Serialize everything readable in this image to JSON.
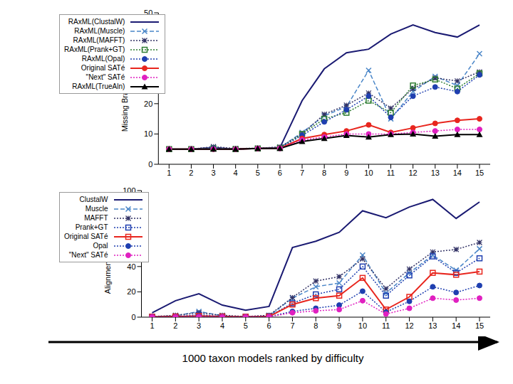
{
  "chart_data": [
    {
      "type": "line",
      "ylabel": "Missing Branch Rate (%)",
      "categories": [
        "1",
        "2",
        "3",
        "4",
        "5",
        "6",
        "7",
        "8",
        "9",
        "10",
        "11",
        "12",
        "13",
        "14",
        "15"
      ],
      "ylim": [
        0,
        50
      ],
      "yticks": [
        0,
        10,
        20,
        30,
        40,
        50
      ],
      "grid": false,
      "legend": "upper left",
      "series": [
        {
          "name": "RAxML(ClustalW)",
          "color": "#1a1a72",
          "line_style": "solid",
          "marker": "none",
          "values": [
            5,
            5,
            5.5,
            5,
            5.2,
            5.5,
            21,
            31.5,
            36.8,
            38,
            43,
            46,
            43.5,
            42,
            46
          ]
        },
        {
          "name": "RAxML(Muscle)",
          "color": "#4a86c8",
          "line_style": "dashed",
          "marker": "x",
          "values": [
            5,
            5,
            5.5,
            5,
            5.2,
            5.5,
            10.5,
            16,
            19,
            31,
            15,
            24,
            29,
            26,
            36.5
          ]
        },
        {
          "name": "RAxML(MAFFT)",
          "color": "#333366",
          "line_style": "dotted",
          "marker": "star",
          "values": [
            5,
            5,
            5.8,
            5.2,
            5.3,
            5.7,
            10,
            16.5,
            19.5,
            23.5,
            18.5,
            25,
            28.5,
            27.5,
            30.5
          ]
        },
        {
          "name": "RAxML(Prank+GT)",
          "color": "#2e7d32",
          "line_style": "dotted",
          "marker": "square",
          "values": [
            5,
            5,
            5.2,
            5,
            5.2,
            5.4,
            10,
            15,
            17,
            21,
            17,
            26,
            28,
            25,
            30
          ]
        },
        {
          "name": "RAxML(Opal)",
          "color": "#1f3fb0",
          "line_style": "dotted",
          "marker": "circle",
          "values": [
            5,
            5,
            5.2,
            5,
            5.2,
            5.4,
            9.5,
            14,
            18,
            22.5,
            15.5,
            22.5,
            25.5,
            24,
            29.5
          ]
        },
        {
          "name": "Original SATé",
          "color": "#e8261e",
          "line_style": "solid",
          "marker": "circle",
          "values": [
            5,
            5,
            5,
            5,
            5.2,
            5.3,
            8.5,
            9.8,
            11,
            13,
            10.5,
            12,
            13.5,
            14.5,
            15
          ]
        },
        {
          "name": "\"Next\" SATé",
          "color": "#e020c0",
          "line_style": "dotted",
          "marker": "circle",
          "values": [
            5,
            5,
            5,
            5,
            5.2,
            5.2,
            8,
            9,
            10,
            10,
            10,
            10.5,
            11,
            11.5,
            11.5
          ]
        },
        {
          "name": "RAxML(TrueAln)",
          "color": "#000000",
          "line_style": "solid",
          "marker": "triangle",
          "values": [
            5,
            5,
            5,
            5,
            5.2,
            5.2,
            7.5,
            8.5,
            9.5,
            9,
            9.8,
            10,
            9.3,
            9.8,
            9.8
          ]
        }
      ]
    },
    {
      "type": "line",
      "ylabel": "Alignment SP-FN Error",
      "xlabel": "1000 taxon models ranked by difficulty",
      "categories": [
        "1",
        "2",
        "3",
        "4",
        "5",
        "6",
        "7",
        "8",
        "9",
        "10",
        "11",
        "12",
        "13",
        "14",
        "15"
      ],
      "ylim": [
        0,
        100
      ],
      "yticks": [
        0,
        20,
        40,
        60,
        80,
        100
      ],
      "grid": false,
      "legend": "upper left",
      "series": [
        {
          "name": "ClustalW",
          "color": "#1a1a72",
          "line_style": "solid",
          "marker": "none",
          "values": [
            3.5,
            13,
            18.5,
            9.5,
            5.5,
            8.5,
            55,
            60,
            67,
            84,
            78.5,
            87,
            93,
            78,
            91
          ]
        },
        {
          "name": "Muscle",
          "color": "#4a86c8",
          "line_style": "dashed",
          "marker": "x",
          "values": [
            0.5,
            1,
            4.5,
            1,
            0.5,
            1,
            15,
            24,
            27,
            49,
            19,
            35,
            49,
            37,
            54
          ]
        },
        {
          "name": "MAFFT",
          "color": "#333366",
          "line_style": "dotted",
          "marker": "star",
          "values": [
            0.5,
            1.5,
            3.5,
            1.5,
            0.5,
            1.5,
            15.5,
            28.5,
            32,
            46,
            22.5,
            38,
            51.5,
            53.5,
            59
          ]
        },
        {
          "name": "Prank+GT",
          "color": "#1f3fb0",
          "line_style": "dotted",
          "marker": "square",
          "values": [
            0.3,
            0.5,
            2,
            0.5,
            0.3,
            0.8,
            11,
            18,
            22,
            40,
            17,
            33,
            48,
            35,
            46.5
          ]
        },
        {
          "name": "Original SATé",
          "color": "#e8261e",
          "line_style": "solid",
          "marker": "square",
          "values": [
            0.3,
            0.5,
            1,
            0.5,
            0.3,
            0.5,
            10,
            15,
            17,
            31,
            6,
            16,
            35,
            33.5,
            36
          ]
        },
        {
          "name": "Opal",
          "color": "#1f3fb0",
          "line_style": "dotted",
          "marker": "circle",
          "values": [
            0.2,
            0.3,
            0.5,
            0.3,
            0.2,
            0.4,
            4.5,
            7,
            9.5,
            20.5,
            4,
            12.5,
            24,
            19.5,
            25
          ]
        },
        {
          "name": "\"Next\" SATé",
          "color": "#e020c0",
          "line_style": "dotted",
          "marker": "circle",
          "values": [
            0.2,
            0.2,
            0.3,
            0.2,
            0.2,
            0.3,
            3.5,
            5,
            6,
            13,
            2.5,
            7,
            15,
            13.5,
            15
          ]
        }
      ]
    }
  ]
}
